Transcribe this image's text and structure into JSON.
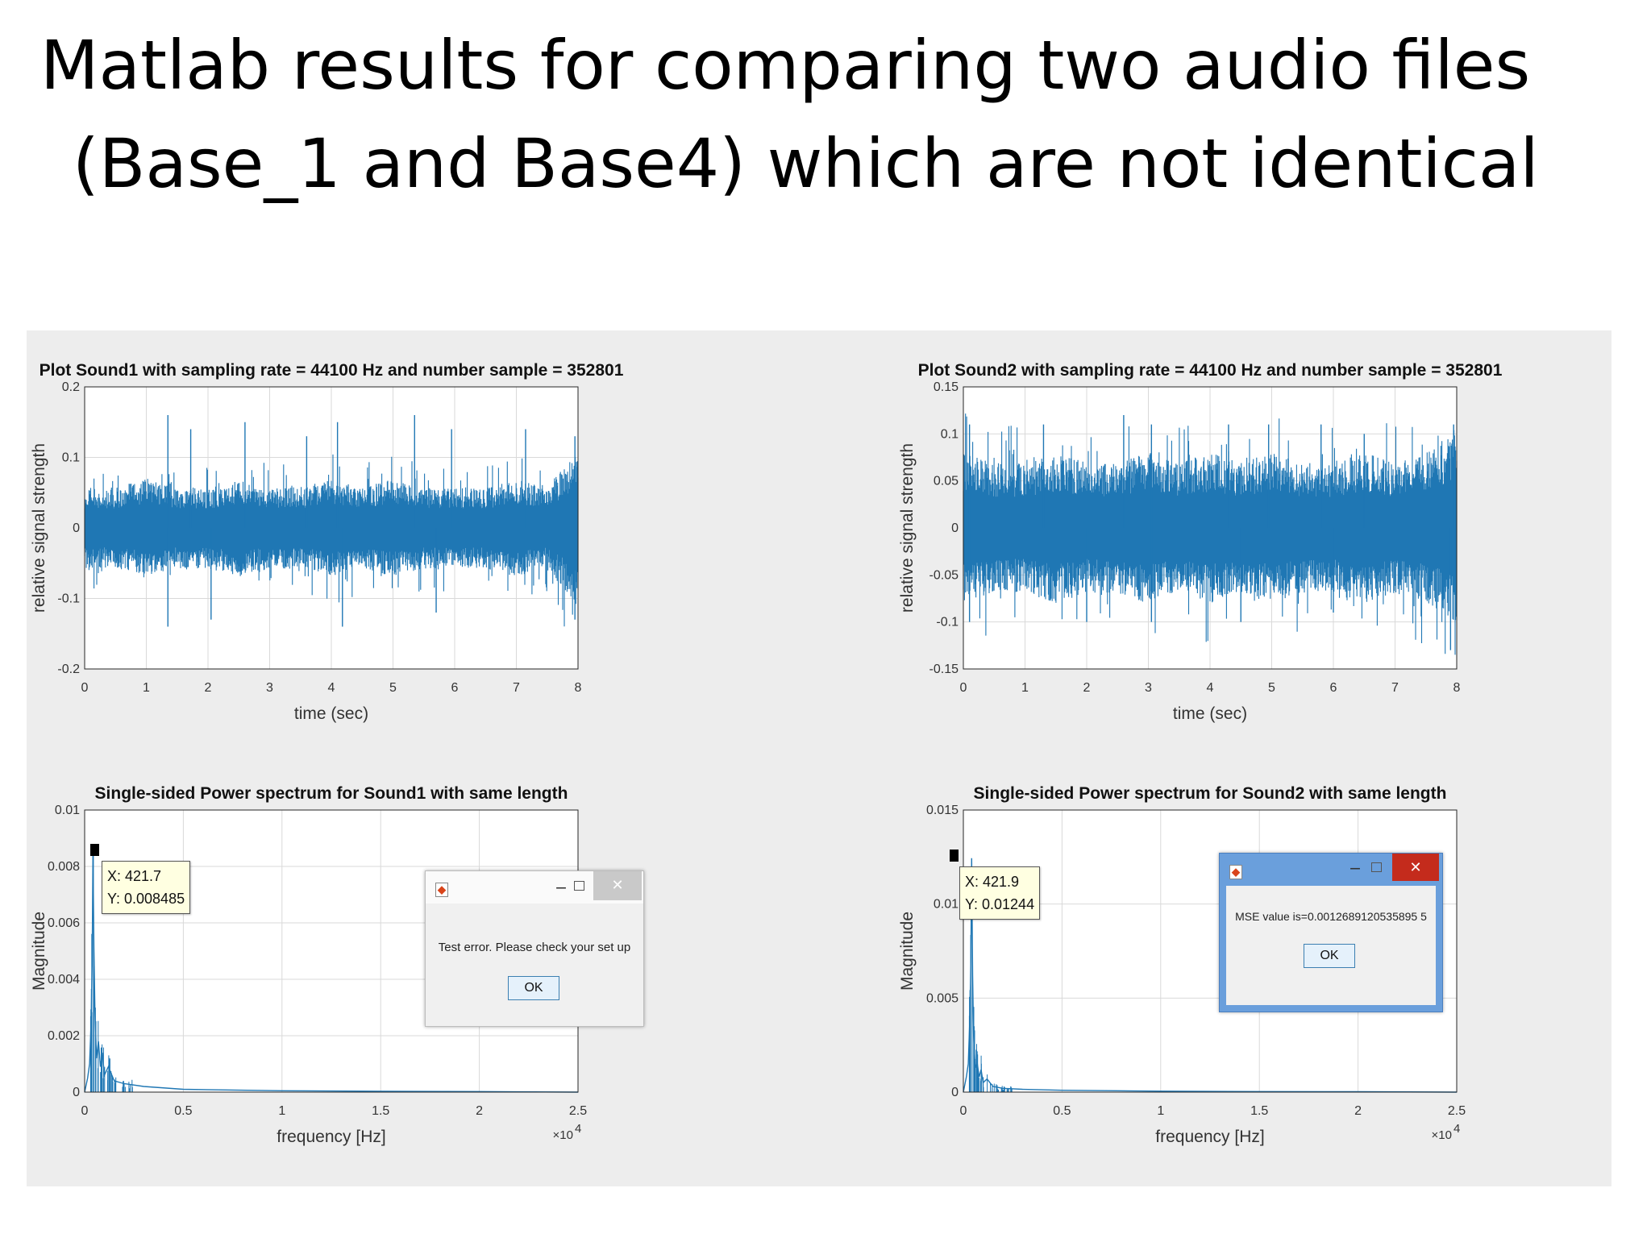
{
  "slide": {
    "title_line1": "Matlab results for comparing two audio files",
    "title_line2": "(Base_1 and Base4) which are not identical"
  },
  "colors": {
    "signal": "#1f77b4",
    "axes_bg": "#ffffff",
    "figure_bg": "#ededed",
    "grid": "#d9d9d9",
    "close_red": "#c42b1c",
    "win_blue": "#6a9fdc"
  },
  "chart_data": [
    {
      "type": "line",
      "title": "Plot Sound1 with sampling rate = 44100 Hz and number sample = 352801",
      "xlabel": "time (sec)",
      "ylabel": "relative signal strength",
      "xlim": [
        0,
        8
      ],
      "ylim": [
        -0.2,
        0.2
      ],
      "x_ticks": [
        "0",
        "1",
        "2",
        "3",
        "4",
        "5",
        "6",
        "7",
        "8"
      ],
      "y_ticks": [
        "-0.2",
        "-0.1",
        "0",
        "0.1",
        "0.2"
      ],
      "grid": true,
      "series": [
        {
          "envelope_time_sec": [
            0.0,
            0.5,
            1.0,
            1.5,
            2.0,
            2.5,
            3.0,
            3.5,
            4.0,
            4.5,
            5.0,
            5.5,
            6.0,
            6.5,
            7.0,
            7.5,
            8.0
          ],
          "typical_amplitude": [
            0.05,
            0.05,
            0.06,
            0.05,
            0.05,
            0.06,
            0.05,
            0.05,
            0.06,
            0.05,
            0.06,
            0.05,
            0.05,
            0.05,
            0.06,
            0.05,
            0.1
          ],
          "peaks": [
            [
              1.35,
              0.16
            ],
            [
              1.72,
              0.14
            ],
            [
              2.6,
              0.15
            ],
            [
              3.6,
              0.13
            ],
            [
              4.1,
              0.15
            ],
            [
              5.35,
              0.16
            ],
            [
              5.95,
              0.14
            ],
            [
              7.15,
              0.14
            ],
            [
              7.95,
              0.13
            ]
          ],
          "troughs": [
            [
              1.35,
              -0.14
            ],
            [
              2.05,
              -0.13
            ],
            [
              4.18,
              -0.14
            ],
            [
              5.7,
              -0.12
            ],
            [
              7.95,
              -0.13
            ]
          ]
        }
      ]
    },
    {
      "type": "line",
      "title": "Plot Sound2 with sampling rate = 44100 Hz and number sample = 352801",
      "xlabel": "time (sec)",
      "ylabel": "relative signal strength",
      "xlim": [
        0,
        8
      ],
      "ylim": [
        -0.15,
        0.15
      ],
      "x_ticks": [
        "0",
        "1",
        "2",
        "3",
        "4",
        "5",
        "6",
        "7",
        "8"
      ],
      "y_ticks": [
        "-0.15",
        "-0.1",
        "-0.05",
        "0",
        "0.05",
        "0.1",
        "0.15"
      ],
      "grid": true,
      "series": [
        {
          "envelope_time_sec": [
            0.0,
            0.5,
            1.0,
            1.5,
            2.0,
            2.5,
            3.0,
            3.5,
            4.0,
            4.5,
            5.0,
            5.5,
            6.0,
            6.5,
            7.0,
            7.5,
            8.0
          ],
          "typical_amplitude": [
            0.07,
            0.06,
            0.06,
            0.07,
            0.06,
            0.06,
            0.07,
            0.06,
            0.07,
            0.06,
            0.07,
            0.06,
            0.06,
            0.07,
            0.06,
            0.07,
            0.09
          ],
          "peaks": [
            [
              0.1,
              0.11
            ],
            [
              1.3,
              0.11
            ],
            [
              2.6,
              0.12
            ],
            [
              3.05,
              0.11
            ],
            [
              4.3,
              0.11
            ],
            [
              4.95,
              0.11
            ],
            [
              5.8,
              0.11
            ],
            [
              6.5,
              0.1
            ],
            [
              7.95,
              0.11
            ]
          ],
          "troughs": [
            [
              0.1,
              -0.1
            ],
            [
              2.0,
              -0.1
            ],
            [
              3.05,
              -0.1
            ],
            [
              4.5,
              -0.1
            ],
            [
              6.0,
              -0.09
            ],
            [
              7.9,
              -0.13
            ]
          ]
        }
      ]
    },
    {
      "type": "line",
      "title": "Single-sided Power spectrum for Sound1 with same length",
      "xlabel": "frequency [Hz]",
      "ylabel": "Magnitude",
      "x_multiplier": "×10",
      "x_multiplier_exp": "4",
      "xlim": [
        0,
        25000
      ],
      "ylim": [
        0,
        0.01
      ],
      "x_ticks": [
        "0",
        "0.5",
        "1",
        "1.5",
        "2",
        "2.5"
      ],
      "y_ticks": [
        "0",
        "0.002",
        "0.004",
        "0.006",
        "0.008",
        "0.01"
      ],
      "grid": true,
      "series": [
        {
          "x_hz": [
            0,
            150,
            250,
            330,
            380,
            421.7,
            470,
            520,
            600,
            700,
            800,
            900,
            1000,
            1200,
            1500,
            2000,
            3000,
            5000,
            10000,
            15000,
            20000,
            25000
          ],
          "y": [
            0,
            0.0005,
            0.001,
            0.0025,
            0.0045,
            0.008485,
            0.0051,
            0.003,
            0.0012,
            0.0018,
            0.0009,
            0.0014,
            0.0006,
            0.0009,
            0.0004,
            0.0003,
            0.0002,
            0.0001,
            5e-05,
            3e-05,
            2e-05,
            0
          ]
        }
      ],
      "datatip": {
        "x_label": "X: 421.7",
        "y_label": "Y: 0.008485",
        "x": 421.7,
        "y": 0.008485
      }
    },
    {
      "type": "line",
      "title": "Single-sided Power spectrum for Sound2 with same length",
      "xlabel": "frequency [Hz]",
      "ylabel": "Magnitude",
      "x_multiplier": "×10",
      "x_multiplier_exp": "4",
      "xlim": [
        0,
        25000
      ],
      "ylim": [
        0,
        0.015
      ],
      "x_ticks": [
        "0",
        "0.5",
        "1",
        "1.5",
        "2",
        "2.5"
      ],
      "y_ticks": [
        "0",
        "0.005",
        "0.01",
        "0.015"
      ],
      "grid": true,
      "series": [
        {
          "x_hz": [
            0,
            150,
            250,
            330,
            380,
            421.9,
            470,
            520,
            600,
            700,
            800,
            900,
            1000,
            1200,
            1500,
            2000,
            3000,
            5000,
            10000,
            15000,
            20000,
            25000
          ],
          "y": [
            0,
            0.0008,
            0.0015,
            0.004,
            0.007,
            0.01244,
            0.0062,
            0.003,
            0.0013,
            0.0016,
            0.0008,
            0.0012,
            0.0005,
            0.0007,
            0.0003,
            0.0002,
            0.00015,
            0.0001,
            5e-05,
            3e-05,
            2e-05,
            0
          ]
        }
      ],
      "datatip": {
        "x_label": "X: 421.9",
        "y_label": "Y: 0.01244",
        "x": 421.9,
        "y": 0.01244
      }
    }
  ],
  "dialogs": {
    "error": {
      "minimize": "‒",
      "close": "✕",
      "message": "Test error. Please check your set up",
      "ok": "OK"
    },
    "mse": {
      "minimize": "‒",
      "close": "✕",
      "message": "MSE value is=0.0012689120535895 5",
      "ok": "OK"
    }
  }
}
